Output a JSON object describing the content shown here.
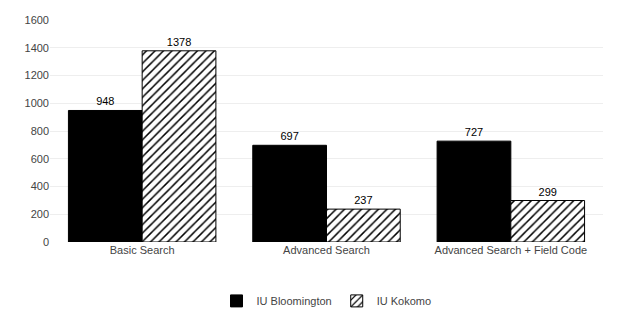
{
  "chart_data": {
    "type": "bar",
    "categories": [
      "Basic Search",
      "Advanced Search",
      "Advanced Search + Field Code"
    ],
    "series": [
      {
        "name": "IU Bloomington",
        "color": "#000000",
        "values": [
          948,
          697,
          727
        ]
      },
      {
        "name": "IU Kokomo",
        "color": "#ffffff",
        "marker": "hatch",
        "values": [
          1378,
          237,
          299
        ]
      }
    ],
    "ylim": [
      0,
      1600
    ],
    "yticks": [
      0,
      200,
      400,
      600,
      800,
      1000,
      1200,
      1400,
      1600
    ],
    "grid": true,
    "legend": "bottom",
    "data_labels": true
  }
}
